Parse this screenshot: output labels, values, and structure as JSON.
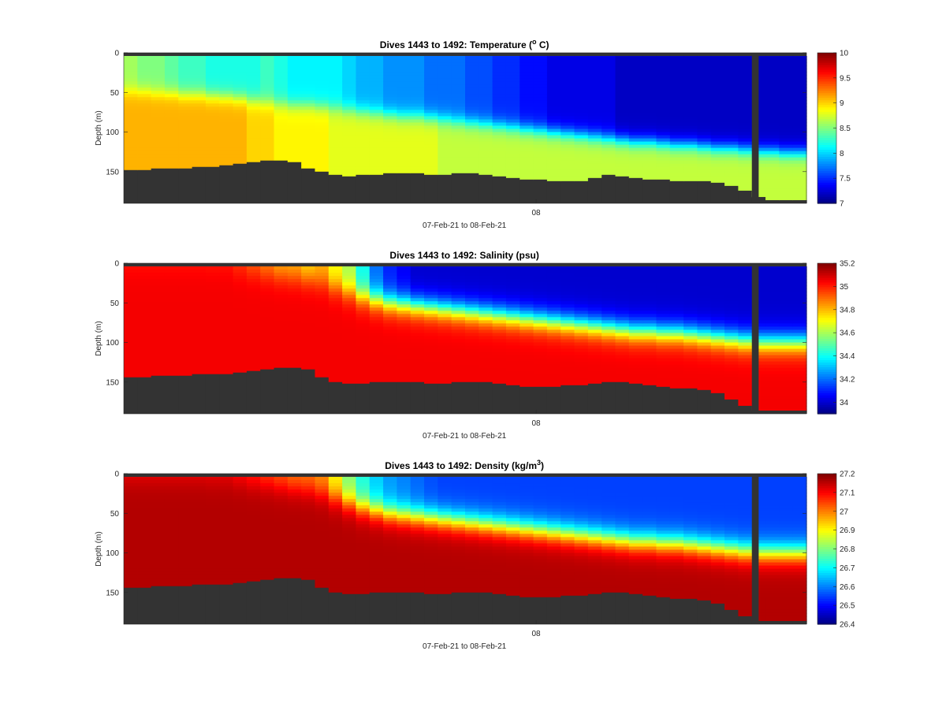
{
  "figure": {
    "date_range_label": "07-Feb-21 to 08-Feb-21"
  },
  "chart_data": [
    {
      "type": "heatmap",
      "title": "Dives 1443 to 1492: Temperature (",
      "title_super": "o",
      "title_end": " C)",
      "variable": "temperature",
      "xlabel": "07-Feb-21 to 08-Feb-21",
      "ylabel": "Depth (m)",
      "x_tick_labels": [
        "08"
      ],
      "y_ticks": [
        0,
        50,
        100,
        150
      ],
      "ylim": [
        0,
        190
      ],
      "n_dives": 50,
      "y_reversed": true,
      "colorbar": {
        "colormap": "jet",
        "limits": [
          7,
          10
        ],
        "ticks": [
          7,
          7.5,
          8,
          8.5,
          9,
          9.5,
          10
        ]
      },
      "bottom_depth_m": [
        148,
        148,
        146,
        146,
        146,
        144,
        144,
        142,
        140,
        138,
        136,
        136,
        138,
        146,
        150,
        154,
        156,
        154,
        154,
        152,
        152,
        152,
        154,
        154,
        152,
        152,
        154,
        156,
        158,
        160,
        160,
        162,
        162,
        162,
        158,
        154,
        156,
        158,
        160,
        160,
        162,
        162,
        162,
        164,
        168,
        174,
        182,
        186,
        186,
        186
      ],
      "surface_value": [
        8.6,
        8.5,
        8.5,
        8.4,
        8.3,
        8.3,
        8.2,
        8.2,
        8.2,
        8.2,
        8.3,
        8.2,
        8.1,
        8.1,
        8.1,
        8.1,
        8.0,
        7.9,
        7.9,
        7.8,
        7.8,
        7.8,
        7.7,
        7.7,
        7.7,
        7.6,
        7.6,
        7.5,
        7.5,
        7.4,
        7.4,
        7.3,
        7.3,
        7.3,
        7.3,
        7.3,
        7.2,
        7.2,
        7.2,
        7.2,
        7.2,
        7.2,
        7.2,
        7.2,
        7.2,
        7.2,
        7.2,
        7.2,
        7.2,
        7.2
      ],
      "deep_value": [
        9.1,
        9.1,
        9.1,
        9.1,
        9.1,
        9.1,
        9.1,
        9.1,
        9.1,
        9.0,
        9.0,
        8.9,
        8.9,
        8.9,
        8.9,
        8.8,
        8.8,
        8.8,
        8.8,
        8.8,
        8.8,
        8.8,
        8.8,
        8.7,
        8.7,
        8.7,
        8.7,
        8.7,
        8.7,
        8.7,
        8.7,
        8.7,
        8.7,
        8.7,
        8.7,
        8.7,
        8.7,
        8.7,
        8.7,
        8.7,
        8.7,
        8.7,
        8.7,
        8.7,
        8.7,
        8.7,
        8.7,
        8.7,
        8.7,
        8.7
      ],
      "transition_depth_m": [
        48,
        48,
        50,
        50,
        52,
        52,
        54,
        55,
        57,
        60,
        62,
        64,
        66,
        66,
        68,
        70,
        72,
        74,
        76,
        78,
        80,
        80,
        82,
        84,
        86,
        88,
        90,
        92,
        94,
        96,
        98,
        100,
        102,
        104,
        106,
        108,
        110,
        112,
        112,
        114,
        116,
        116,
        118,
        120,
        120,
        122,
        124,
        124,
        126,
        126
      ],
      "transition_width_m": 22
    },
    {
      "type": "heatmap",
      "title": "Dives 1443 to 1492: Salinity (psu)",
      "variable": "salinity",
      "xlabel": "07-Feb-21 to 08-Feb-21",
      "ylabel": "Depth (m)",
      "x_tick_labels": [
        "08"
      ],
      "y_ticks": [
        0,
        50,
        100,
        150
      ],
      "ylim": [
        0,
        190
      ],
      "n_dives": 50,
      "y_reversed": true,
      "colorbar": {
        "colormap": "jet",
        "limits": [
          33.9,
          35.2
        ],
        "ticks": [
          34,
          34.2,
          34.4,
          34.6,
          34.8,
          35,
          35.2
        ]
      },
      "bottom_depth_m": [
        144,
        144,
        142,
        142,
        142,
        140,
        140,
        140,
        138,
        136,
        134,
        132,
        132,
        134,
        144,
        150,
        152,
        152,
        150,
        150,
        150,
        150,
        152,
        152,
        150,
        150,
        150,
        152,
        154,
        156,
        156,
        156,
        154,
        154,
        152,
        150,
        150,
        152,
        154,
        156,
        158,
        158,
        160,
        164,
        172,
        180,
        186,
        186,
        186,
        186
      ],
      "surface_value": [
        35.0,
        35.0,
        35.0,
        35.0,
        35.0,
        35.0,
        35.0,
        35.0,
        34.95,
        34.9,
        34.85,
        34.8,
        34.8,
        34.75,
        34.8,
        34.7,
        34.6,
        34.4,
        34.2,
        34.1,
        34.05,
        34.0,
        34.0,
        34.0,
        34.0,
        34.0,
        34.0,
        34.0,
        34.0,
        34.0,
        34.0,
        34.0,
        34.0,
        34.0,
        34.0,
        34.0,
        34.0,
        34.0,
        34.0,
        34.0,
        34.0,
        34.0,
        34.0,
        34.0,
        34.0,
        34.0,
        34.0,
        34.0,
        34.0,
        34.0
      ],
      "deep_value": [
        35.05,
        35.05,
        35.05,
        35.05,
        35.05,
        35.05,
        35.05,
        35.05,
        35.05,
        35.05,
        35.05,
        35.05,
        35.05,
        35.05,
        35.05,
        35.05,
        35.05,
        35.05,
        35.05,
        35.05,
        35.05,
        35.05,
        35.05,
        35.05,
        35.05,
        35.05,
        35.05,
        35.05,
        35.05,
        35.05,
        35.05,
        35.05,
        35.05,
        35.05,
        35.05,
        35.05,
        35.05,
        35.05,
        35.05,
        35.05,
        35.05,
        35.05,
        35.05,
        35.05,
        35.05,
        35.05,
        35.05,
        35.05,
        35.05,
        35.05
      ],
      "transition_depth_m": [
        6,
        6,
        6,
        6,
        6,
        6,
        8,
        8,
        10,
        12,
        14,
        16,
        18,
        20,
        24,
        30,
        36,
        42,
        46,
        50,
        52,
        54,
        56,
        58,
        60,
        62,
        64,
        66,
        68,
        70,
        72,
        74,
        76,
        78,
        80,
        82,
        84,
        86,
        86,
        88,
        88,
        90,
        92,
        94,
        96,
        98,
        100,
        100,
        100,
        100
      ],
      "transition_width_m": 34
    },
    {
      "type": "heatmap",
      "title": "Dives 1443 to 1492: Density (kg/m",
      "title_super": "3",
      "title_end": ")",
      "variable": "density",
      "xlabel": "07-Feb-21 to 08-Feb-21",
      "ylabel": "Depth (m)",
      "x_tick_labels": [
        "08"
      ],
      "y_ticks": [
        0,
        50,
        100,
        150
      ],
      "ylim": [
        0,
        190
      ],
      "n_dives": 50,
      "y_reversed": true,
      "colorbar": {
        "colormap": "jet",
        "limits": [
          26.4,
          27.2
        ],
        "ticks": [
          26.4,
          26.5,
          26.6,
          26.7,
          26.8,
          26.9,
          27,
          27.1,
          27.2
        ]
      },
      "bottom_depth_m": [
        144,
        144,
        142,
        142,
        142,
        140,
        140,
        140,
        138,
        136,
        134,
        132,
        132,
        134,
        144,
        150,
        152,
        152,
        150,
        150,
        150,
        150,
        152,
        152,
        150,
        150,
        150,
        152,
        154,
        156,
        156,
        156,
        154,
        154,
        152,
        150,
        150,
        152,
        154,
        156,
        158,
        158,
        160,
        164,
        172,
        180,
        186,
        186,
        186,
        186
      ],
      "surface_value": [
        27.1,
        27.1,
        27.1,
        27.1,
        27.1,
        27.1,
        27.1,
        27.1,
        27.08,
        27.06,
        27.04,
        27.02,
        27.0,
        27.0,
        26.98,
        26.9,
        26.8,
        26.72,
        26.66,
        26.62,
        26.6,
        26.58,
        26.56,
        26.55,
        26.55,
        26.55,
        26.55,
        26.55,
        26.55,
        26.55,
        26.55,
        26.55,
        26.55,
        26.55,
        26.55,
        26.55,
        26.55,
        26.55,
        26.55,
        26.55,
        26.55,
        26.55,
        26.55,
        26.55,
        26.55,
        26.55,
        26.55,
        26.55,
        26.55,
        26.55
      ],
      "deep_value": [
        27.16,
        27.16,
        27.16,
        27.16,
        27.16,
        27.16,
        27.16,
        27.16,
        27.16,
        27.16,
        27.16,
        27.16,
        27.16,
        27.16,
        27.16,
        27.16,
        27.16,
        27.16,
        27.16,
        27.16,
        27.16,
        27.16,
        27.16,
        27.16,
        27.16,
        27.16,
        27.16,
        27.16,
        27.16,
        27.16,
        27.16,
        27.16,
        27.16,
        27.16,
        27.16,
        27.16,
        27.16,
        27.16,
        27.16,
        27.16,
        27.16,
        27.16,
        27.16,
        27.16,
        27.16,
        27.16,
        27.16,
        27.16,
        27.16,
        27.16
      ],
      "transition_depth_m": [
        6,
        6,
        6,
        6,
        6,
        6,
        8,
        8,
        10,
        12,
        14,
        16,
        18,
        20,
        24,
        30,
        36,
        42,
        46,
        50,
        52,
        54,
        56,
        58,
        60,
        62,
        64,
        66,
        68,
        70,
        72,
        74,
        76,
        78,
        80,
        82,
        84,
        86,
        86,
        88,
        88,
        90,
        92,
        94,
        96,
        98,
        100,
        100,
        100,
        100
      ],
      "transition_width_m": 34
    }
  ],
  "colors": {
    "land_mask": "#333333",
    "axis": "#262626"
  }
}
